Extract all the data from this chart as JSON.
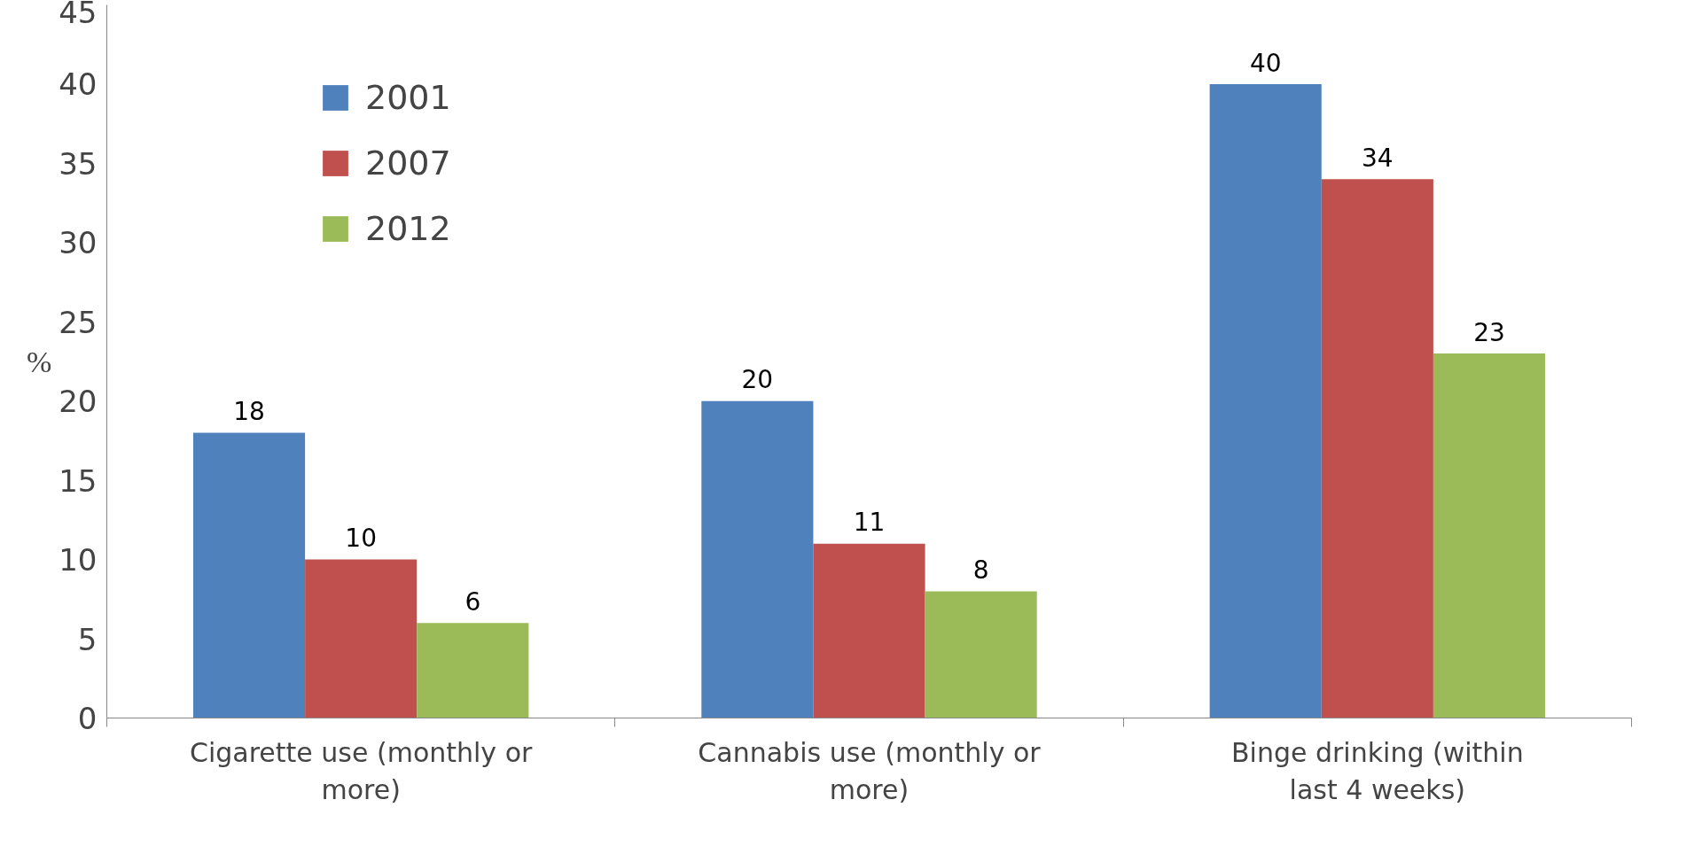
{
  "chart_data": {
    "type": "bar",
    "ylabel": "%",
    "categories": [
      "Cigarette use (monthly or more)",
      "Cannabis use (monthly or more)",
      "Binge drinking (within last 4 weeks)"
    ],
    "series": [
      {
        "name": "2001",
        "color": "#4f81bd",
        "values": [
          18,
          20,
          40
        ]
      },
      {
        "name": "2007",
        "color": "#c0504d",
        "values": [
          10,
          11,
          34
        ]
      },
      {
        "name": "2012",
        "color": "#9bbb59",
        "values": [
          6,
          8,
          23
        ]
      }
    ],
    "ylim": [
      0,
      45
    ],
    "yticks": [
      0,
      5,
      10,
      15,
      20,
      25,
      30,
      35,
      40,
      45
    ],
    "data_labels": true,
    "legend": "top left",
    "grid": false
  }
}
